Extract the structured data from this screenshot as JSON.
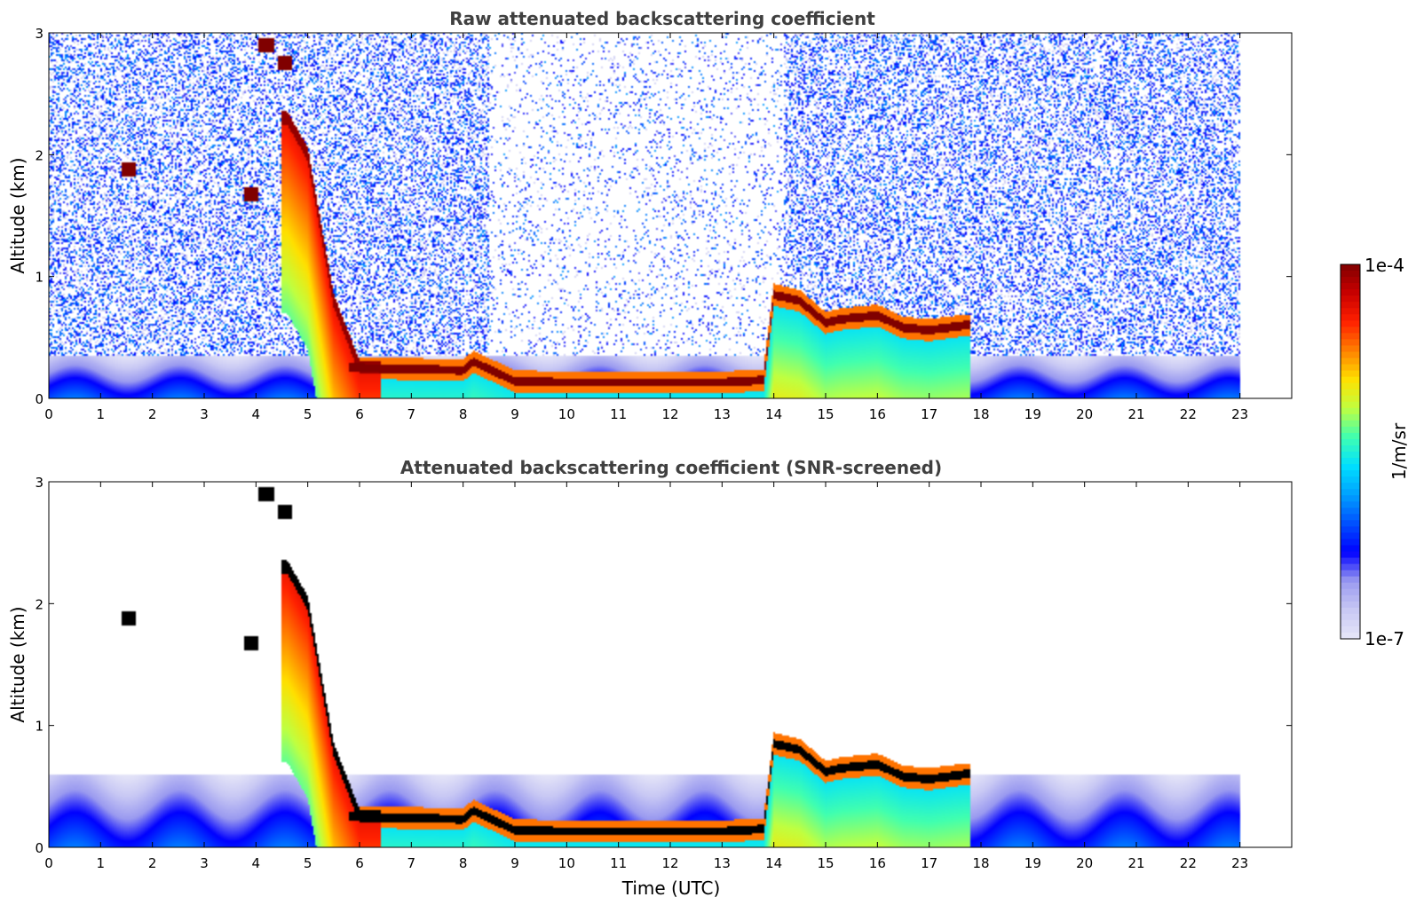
{
  "colors": {
    "background": "#ffffff",
    "title": "#404040",
    "axis": "#000000",
    "colormap": [
      "#e6e6f8",
      "#c8c8f4",
      "#9a9af0",
      "#0000ff",
      "#0050ff",
      "#00a0ff",
      "#00e0ff",
      "#40ffb0",
      "#c0ff40",
      "#ffe000",
      "#ff8000",
      "#ff2000",
      "#c80000",
      "#800000"
    ],
    "saturated_screened": "#000000"
  },
  "chart_data": [
    {
      "type": "heatmap",
      "title": "Raw attenuated backscattering coefficient",
      "xlabel": "",
      "ylabel": "Altitude (km)",
      "xlim": [
        0,
        24
      ],
      "ylim": [
        0,
        3
      ],
      "xticks": [
        "0",
        "1",
        "2",
        "3",
        "4",
        "5",
        "6",
        "7",
        "8",
        "9",
        "10",
        "11",
        "12",
        "13",
        "14",
        "15",
        "16",
        "17",
        "18",
        "19",
        "20",
        "21",
        "22",
        "23"
      ],
      "yticks": [
        "0",
        "1",
        "2",
        "3"
      ],
      "data_end_time": 23,
      "grid": false,
      "features": {
        "aerosol_layer_top_km": 0.35,
        "smoke_plume": {
          "time": [
            4.6,
            5.0,
            5.5,
            6.0
          ],
          "alt_km": [
            2.3,
            2.0,
            0.8,
            0.25
          ]
        },
        "boundary_layer_top": {
          "time": [
            6.0,
            7.0,
            8.0,
            8.2,
            9.0,
            10.0,
            12.0,
            13.0,
            13.8,
            14.0,
            14.5,
            15.0,
            15.3,
            16.0,
            16.5,
            17.0,
            17.7
          ],
          "alt_km": [
            0.25,
            0.24,
            0.23,
            0.3,
            0.14,
            0.13,
            0.13,
            0.13,
            0.15,
            0.85,
            0.8,
            0.62,
            0.65,
            0.68,
            0.58,
            0.56,
            0.6
          ]
        },
        "isolated_layers": [
          {
            "time": 1.55,
            "alt_km": 1.88
          },
          {
            "time": 3.9,
            "alt_km": 1.68
          },
          {
            "time": 4.55,
            "alt_km": 2.75
          },
          {
            "time": 4.2,
            "alt_km": 2.9
          }
        ],
        "noise": "high above the layer"
      }
    },
    {
      "type": "heatmap",
      "title": "Attenuated backscattering coefficient (SNR-screened)",
      "xlabel": "Time (UTC)",
      "ylabel": "Altitude (km)",
      "xlim": [
        0,
        24
      ],
      "ylim": [
        0,
        3
      ],
      "xticks": [
        "0",
        "1",
        "2",
        "3",
        "4",
        "5",
        "6",
        "7",
        "8",
        "9",
        "10",
        "11",
        "12",
        "13",
        "14",
        "15",
        "16",
        "17",
        "18",
        "19",
        "20",
        "21",
        "22",
        "23"
      ],
      "yticks": [
        "0",
        "1",
        "2",
        "3"
      ],
      "data_end_time": 23,
      "grid": false,
      "features": {
        "aerosol_layer_top_km": 0.6,
        "noise": "removed",
        "saturated_core_color": "black"
      }
    }
  ],
  "colorbar": {
    "label": "1/m/sr",
    "max_label": "1e-4",
    "min_label": "1e-7",
    "scale": "log",
    "range": [
      1e-07,
      0.0001
    ]
  }
}
